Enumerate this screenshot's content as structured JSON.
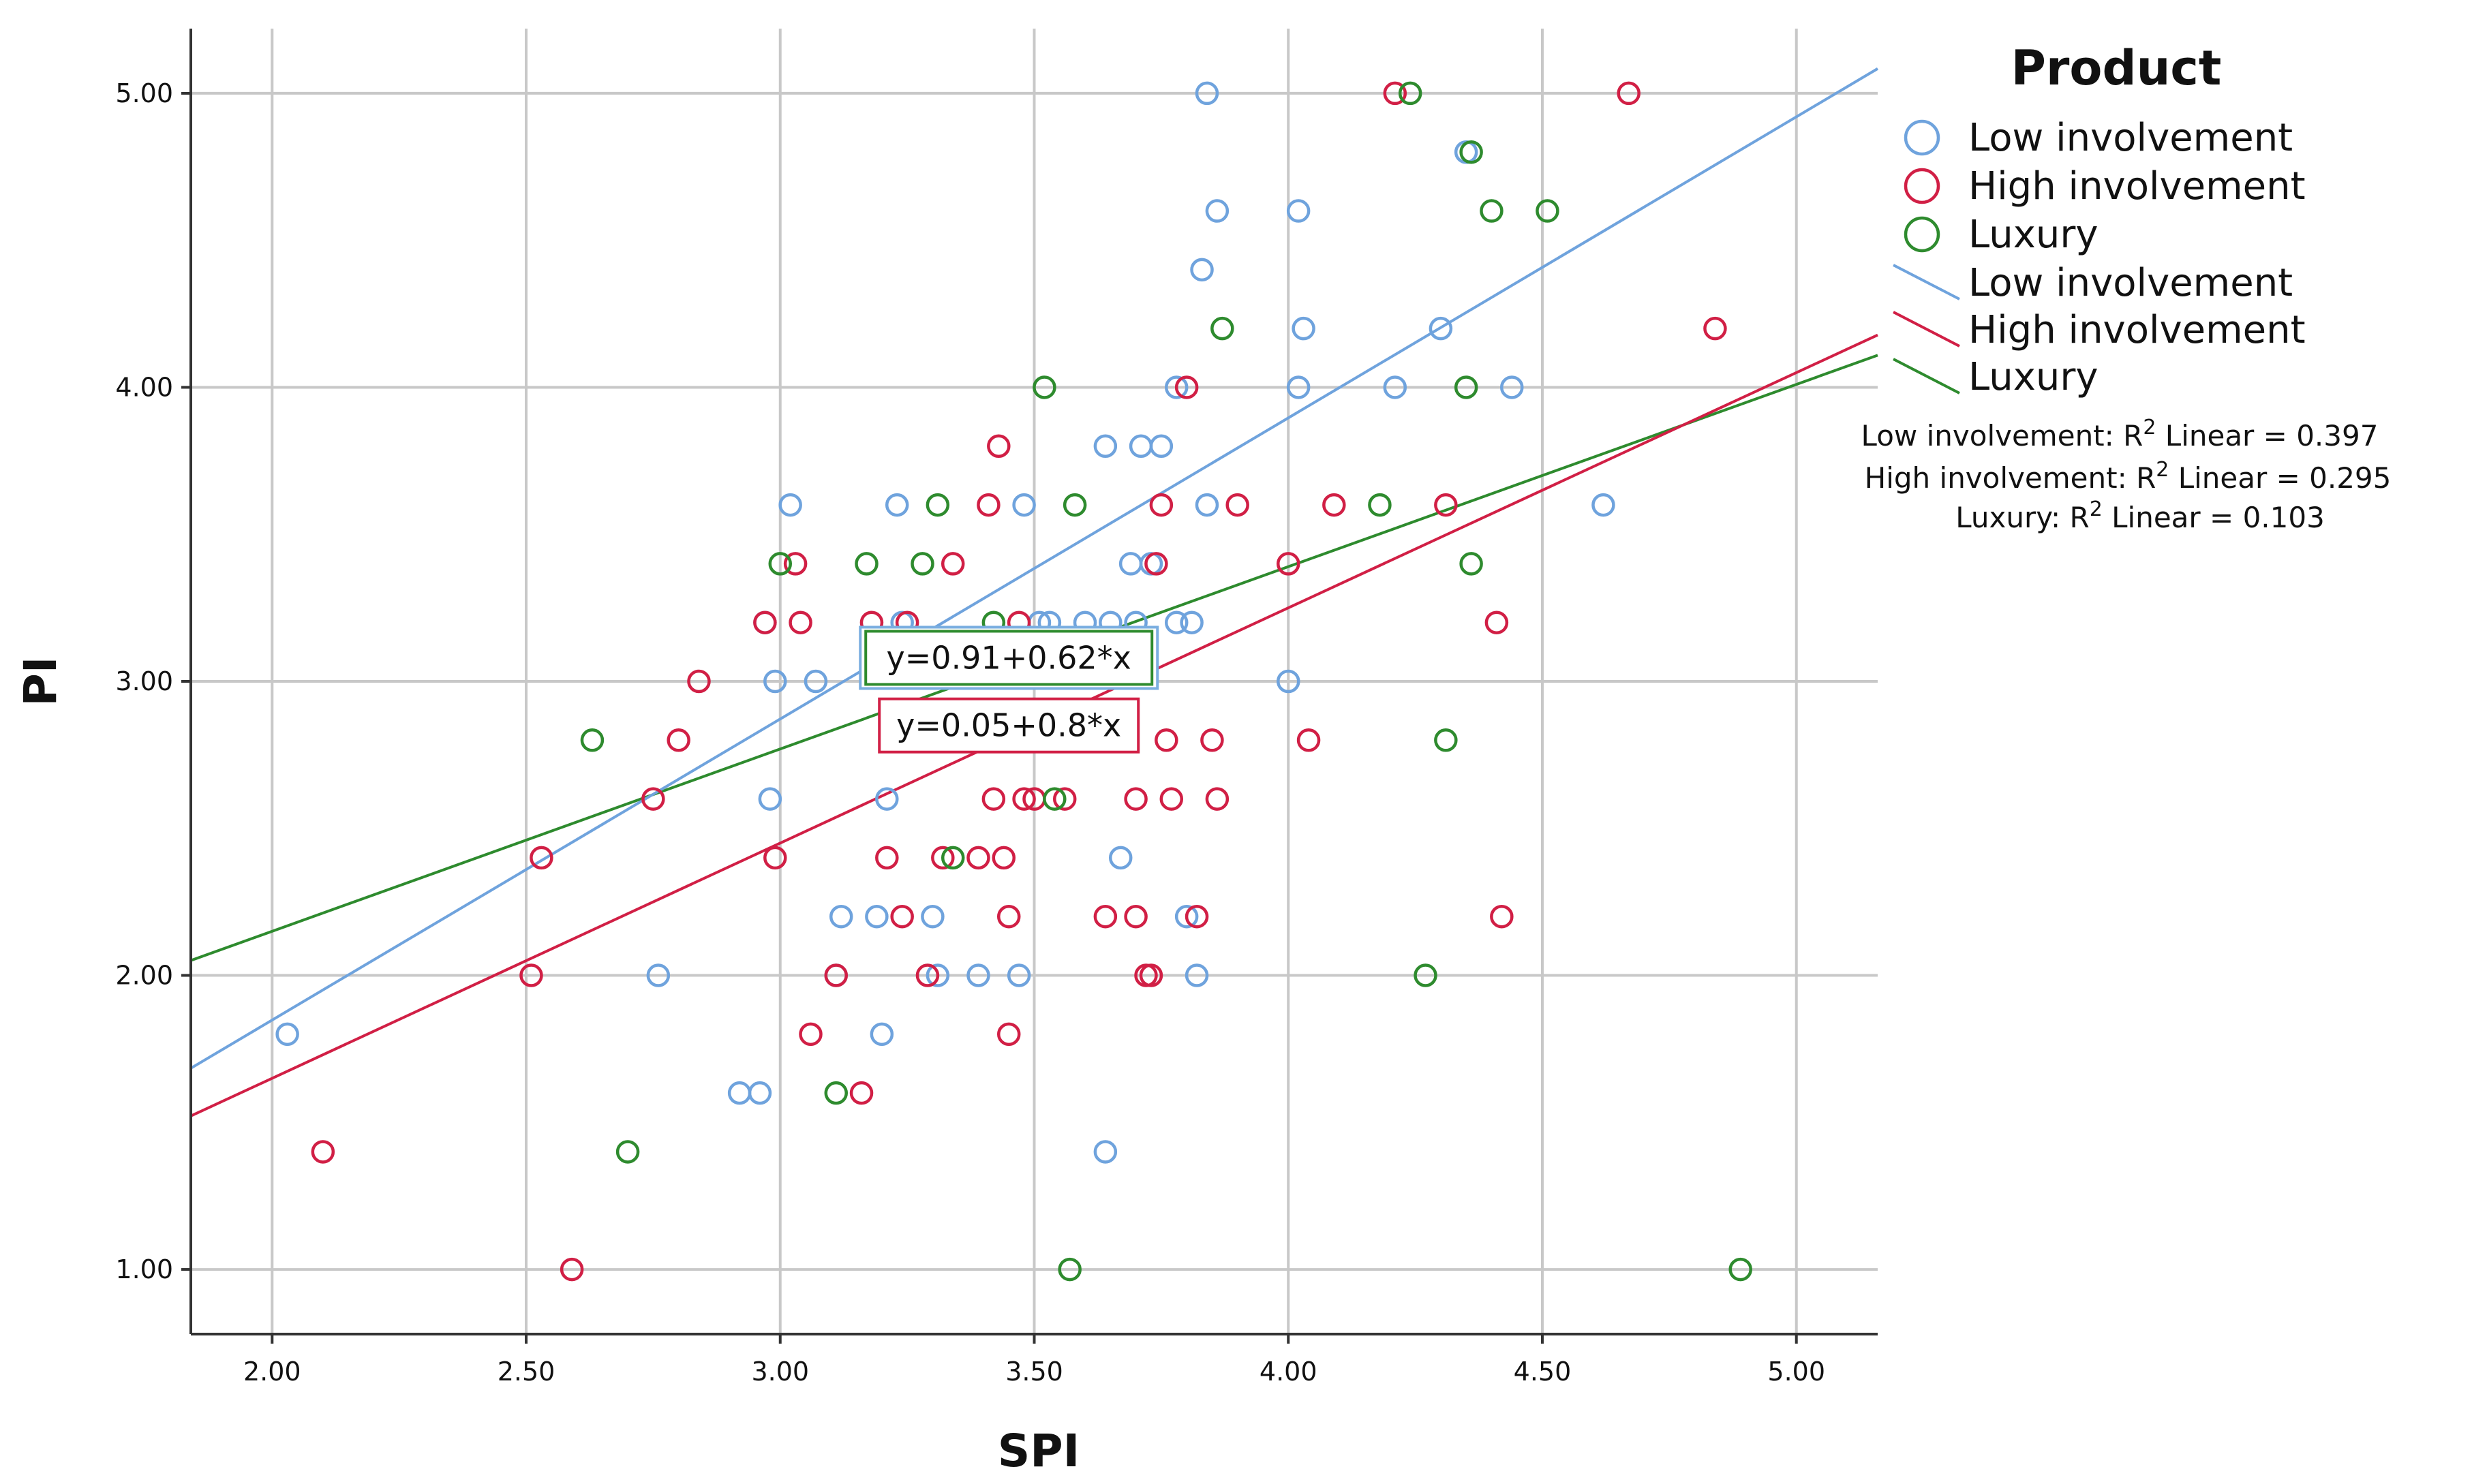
{
  "chart_data": {
    "type": "scatter",
    "title": "",
    "xlabel": "SPI",
    "ylabel": "PI",
    "xlim": [
      1.84,
      5.16
    ],
    "ylim": [
      0.78,
      5.22
    ],
    "x_ticks": [
      "2.00",
      "2.50",
      "3.00",
      "3.50",
      "4.00",
      "4.50",
      "5.00"
    ],
    "y_ticks": [
      "1.00",
      "2.00",
      "3.00",
      "4.00",
      "5.00"
    ],
    "grid": true,
    "legend": {
      "title": "Product",
      "placement": "top-right",
      "marker_entries": [
        "Low involvement",
        "High involvement",
        "Luxury"
      ],
      "line_entries": [
        "Low involvement",
        "High involvement",
        "Luxury"
      ]
    },
    "r2_annotations": [
      {
        "label": "Low involvement: R",
        "sup": "2",
        "rest": " Linear = 0.397"
      },
      {
        "label": "High involvement: R",
        "sup": "2",
        "rest": " Linear = 0.295"
      },
      {
        "label": "Luxury: R",
        "sup": "2",
        "rest": " Linear = 0.103"
      }
    ],
    "equation_labels": [
      {
        "text": "y=0.91+0.62*x",
        "x": 3.45,
        "y": 3.08,
        "border": "#2e8b2e",
        "border2": "#7aaee0"
      },
      {
        "text": "y=0.05+0.8*x",
        "x": 3.45,
        "y": 2.85,
        "border": "#d11f45"
      }
    ],
    "series": [
      {
        "name": "Low involvement",
        "color": "#6fa3dd",
        "fit": {
          "intercept": -0.2,
          "slope": 1.024,
          "x_range": [
            1.84,
            5.16
          ]
        },
        "points": [
          [
            2.03,
            1.8
          ],
          [
            2.76,
            2.0
          ],
          [
            2.92,
            1.6
          ],
          [
            2.96,
            1.6
          ],
          [
            2.97,
            3.2
          ],
          [
            2.98,
            2.6
          ],
          [
            2.99,
            3.0
          ],
          [
            3.02,
            3.6
          ],
          [
            3.07,
            3.0
          ],
          [
            3.11,
            2.0
          ],
          [
            3.12,
            2.2
          ],
          [
            3.19,
            2.2
          ],
          [
            3.2,
            1.8
          ],
          [
            3.21,
            2.6
          ],
          [
            3.23,
            3.6
          ],
          [
            3.24,
            3.2
          ],
          [
            3.3,
            2.2
          ],
          [
            3.31,
            2.0
          ],
          [
            3.39,
            2.0
          ],
          [
            3.47,
            2.0
          ],
          [
            3.48,
            3.6
          ],
          [
            3.51,
            3.2
          ],
          [
            3.53,
            3.2
          ],
          [
            3.6,
            3.2
          ],
          [
            3.64,
            1.4
          ],
          [
            3.64,
            3.8
          ],
          [
            3.65,
            3.2
          ],
          [
            3.67,
            2.4
          ],
          [
            3.69,
            3.4
          ],
          [
            3.7,
            3.2
          ],
          [
            3.71,
            3.8
          ],
          [
            3.73,
            3.4
          ],
          [
            3.75,
            3.8
          ],
          [
            3.78,
            4.0
          ],
          [
            3.78,
            3.2
          ],
          [
            3.8,
            2.2
          ],
          [
            3.81,
            3.2
          ],
          [
            3.82,
            2.0
          ],
          [
            3.83,
            4.4
          ],
          [
            3.84,
            5.0
          ],
          [
            3.84,
            3.6
          ],
          [
            3.86,
            4.6
          ],
          [
            4.0,
            3.0
          ],
          [
            4.02,
            4.0
          ],
          [
            4.02,
            4.6
          ],
          [
            4.03,
            4.2
          ],
          [
            4.21,
            4.0
          ],
          [
            4.3,
            4.2
          ],
          [
            4.35,
            4.8
          ],
          [
            4.44,
            4.0
          ],
          [
            4.62,
            3.6
          ]
        ]
      },
      {
        "name": "High involvement",
        "color": "#d11f45",
        "fit": {
          "intercept": 0.05,
          "slope": 0.8,
          "x_range": [
            1.84,
            5.16
          ]
        },
        "points": [
          [
            2.1,
            1.4
          ],
          [
            2.51,
            2.0
          ],
          [
            2.53,
            2.4
          ],
          [
            2.59,
            1.0
          ],
          [
            2.75,
            2.6
          ],
          [
            2.8,
            2.8
          ],
          [
            2.84,
            3.0
          ],
          [
            2.97,
            3.2
          ],
          [
            2.99,
            2.4
          ],
          [
            3.03,
            3.4
          ],
          [
            3.04,
            3.2
          ],
          [
            3.06,
            1.8
          ],
          [
            3.11,
            2.0
          ],
          [
            3.16,
            1.6
          ],
          [
            3.18,
            3.2
          ],
          [
            3.21,
            2.4
          ],
          [
            3.24,
            2.2
          ],
          [
            3.25,
            3.2
          ],
          [
            3.29,
            2.0
          ],
          [
            3.32,
            2.4
          ],
          [
            3.34,
            3.4
          ],
          [
            3.39,
            2.4
          ],
          [
            3.41,
            3.6
          ],
          [
            3.42,
            2.6
          ],
          [
            3.43,
            3.8
          ],
          [
            3.44,
            2.4
          ],
          [
            3.45,
            2.2
          ],
          [
            3.45,
            1.8
          ],
          [
            3.47,
            3.2
          ],
          [
            3.48,
            2.6
          ],
          [
            3.5,
            2.6
          ],
          [
            3.56,
            2.6
          ],
          [
            3.64,
            2.2
          ],
          [
            3.7,
            2.6
          ],
          [
            3.7,
            2.2
          ],
          [
            3.72,
            2.0
          ],
          [
            3.73,
            2.0
          ],
          [
            3.74,
            3.4
          ],
          [
            3.75,
            3.6
          ],
          [
            3.76,
            2.8
          ],
          [
            3.77,
            2.6
          ],
          [
            3.8,
            4.0
          ],
          [
            3.82,
            2.2
          ],
          [
            3.85,
            2.8
          ],
          [
            3.86,
            2.6
          ],
          [
            3.9,
            3.6
          ],
          [
            4.0,
            3.4
          ],
          [
            4.04,
            2.8
          ],
          [
            4.09,
            3.6
          ],
          [
            4.21,
            5.0
          ],
          [
            4.31,
            3.6
          ],
          [
            4.41,
            3.2
          ],
          [
            4.42,
            2.2
          ],
          [
            4.67,
            5.0
          ],
          [
            4.84,
            4.2
          ]
        ]
      },
      {
        "name": "Luxury",
        "color": "#2e8b2e",
        "fit": {
          "intercept": 0.91,
          "slope": 0.62,
          "x_range": [
            1.84,
            5.16
          ]
        },
        "points": [
          [
            2.63,
            2.8
          ],
          [
            2.7,
            1.4
          ],
          [
            3.0,
            3.4
          ],
          [
            3.11,
            1.6
          ],
          [
            3.17,
            3.4
          ],
          [
            3.28,
            3.4
          ],
          [
            3.31,
            3.6
          ],
          [
            3.34,
            2.4
          ],
          [
            3.42,
            3.2
          ],
          [
            3.52,
            4.0
          ],
          [
            3.54,
            2.6
          ],
          [
            3.57,
            1.0
          ],
          [
            3.58,
            3.6
          ],
          [
            3.87,
            4.2
          ],
          [
            4.18,
            3.6
          ],
          [
            4.24,
            5.0
          ],
          [
            4.27,
            2.0
          ],
          [
            4.31,
            2.8
          ],
          [
            4.35,
            4.0
          ],
          [
            4.36,
            4.8
          ],
          [
            4.36,
            3.4
          ],
          [
            4.4,
            4.6
          ],
          [
            4.51,
            4.6
          ],
          [
            4.89,
            1.0
          ]
        ]
      }
    ]
  }
}
